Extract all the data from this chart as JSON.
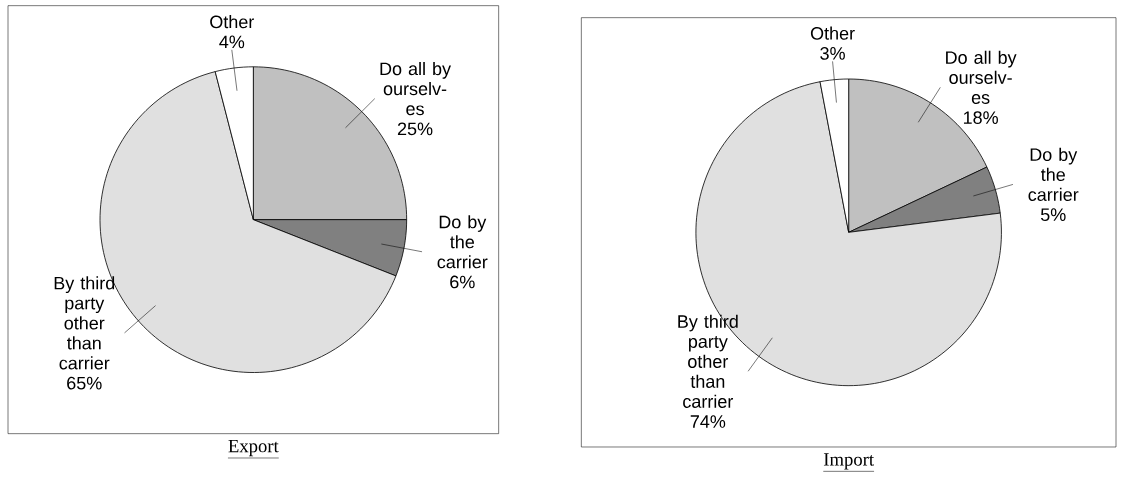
{
  "chart_data": [
    {
      "type": "pie",
      "title": "Export",
      "categories": [
        "Do all by ourselv-es",
        "Do by the carrier",
        "By third party other than carrier",
        "Other"
      ],
      "values": [
        25,
        6,
        65,
        4
      ],
      "value_labels": [
        "25%",
        "6%",
        "65%",
        "4%"
      ],
      "colors": [
        "#c0c0c0",
        "#808080",
        "#e0e0e0",
        "#ffffff"
      ]
    },
    {
      "type": "pie",
      "title": "Import",
      "categories": [
        "Do all by ourselv-es",
        "Do by the carrier",
        "By third party other than carrier",
        "Other"
      ],
      "values": [
        18,
        5,
        74,
        3
      ],
      "value_labels": [
        "18%",
        "5%",
        "74%",
        "3%"
      ],
      "colors": [
        "#c0c0c0",
        "#808080",
        "#e0e0e0",
        "#ffffff"
      ]
    }
  ]
}
